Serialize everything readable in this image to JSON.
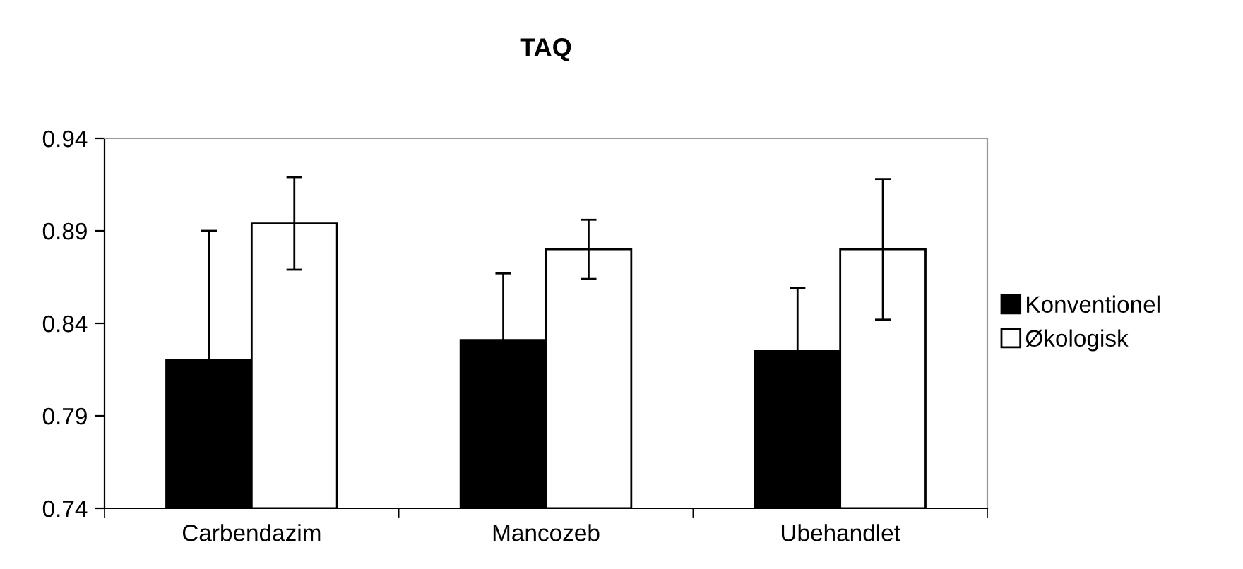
{
  "chart_data": {
    "type": "bar",
    "title": "TAQ",
    "categories": [
      "Carbendazim",
      "Mancozeb",
      "Ubehandlet"
    ],
    "series": [
      {
        "name": "Konventionel",
        "color": "#000000",
        "values": [
          0.82,
          0.831,
          0.825
        ],
        "errors": [
          0.07,
          0.036,
          0.034
        ]
      },
      {
        "name": "Økologisk",
        "color": "#ffffff",
        "values": [
          0.894,
          0.88,
          0.88
        ],
        "errors": [
          0.025,
          0.016,
          0.038
        ]
      }
    ],
    "ylim": [
      0.74,
      0.94
    ],
    "yticks": [
      0.74,
      0.79,
      0.84,
      0.89,
      0.94
    ],
    "grid": false,
    "legend": "right"
  }
}
